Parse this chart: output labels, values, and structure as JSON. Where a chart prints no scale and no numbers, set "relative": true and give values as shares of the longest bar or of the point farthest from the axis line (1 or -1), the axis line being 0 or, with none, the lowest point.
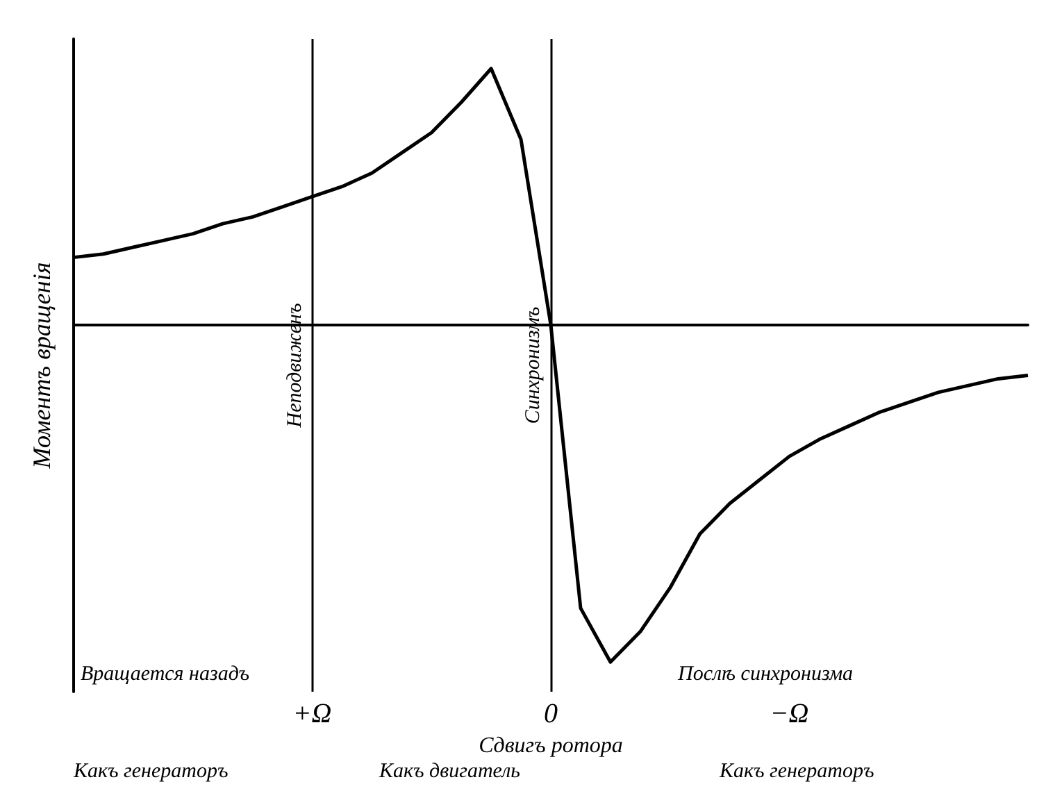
{
  "chart_data": {
    "type": "line",
    "relative": true,
    "xlabel": "Сдвигъ ротора",
    "ylabel": "Моментъ вращенія",
    "categories": [
      null,
      null,
      null,
      null,
      null,
      null,
      null,
      null,
      "+Ω",
      null,
      null,
      null,
      null,
      null,
      null,
      null,
      "0",
      null,
      null,
      null,
      null,
      null,
      null,
      null,
      "−Ω",
      null,
      null,
      null,
      null,
      null,
      null,
      null,
      null
    ],
    "series": [
      {
        "color": "#000000",
        "values": [
          0.2,
          0.21,
          0.23,
          0.25,
          0.27,
          0.3,
          0.32,
          0.35,
          0.38,
          0.41,
          0.45,
          0.51,
          0.57,
          0.66,
          0.76,
          0.55,
          0,
          -0.84,
          -1,
          -0.91,
          -0.78,
          -0.62,
          -0.53,
          -0.46,
          -0.39,
          -0.34,
          -0.3,
          -0.26,
          -0.23,
          -0.2,
          -0.18,
          -0.16,
          -0.15
        ]
      }
    ],
    "ref_lines": [
      {
        "axis": "x",
        "value": "+Ω",
        "label": "Неподвиженъ"
      },
      {
        "axis": "x",
        "value": "0",
        "label": "Синхронизмъ"
      }
    ],
    "annotations": [
      "Вращается назадъ",
      "Послѣ синхронизма",
      "Какъ генераторъ",
      "Какъ двигатель",
      "Какъ генераторъ"
    ],
    "grid": false,
    "marker": "none",
    "line_style": "solid"
  }
}
